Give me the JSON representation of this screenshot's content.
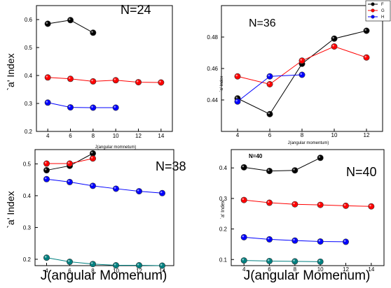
{
  "chart_data": [
    {
      "type": "line",
      "title": "N=24",
      "xlabel": "J(angular momnetum)",
      "ylabel": "`a' Index",
      "xlim": [
        3,
        15
      ],
      "ylim": [
        0.2,
        0.65
      ],
      "xticks": [
        "4",
        "6",
        "8",
        "10",
        "12",
        "14"
      ],
      "yticks": [
        "0.2",
        "0.3",
        "0.4",
        "0.5",
        "0.6"
      ],
      "series": [
        {
          "color": "#000000",
          "x": [
            4,
            6,
            8
          ],
          "y": [
            0.585,
            0.598,
            0.553
          ]
        },
        {
          "color": "#ff0000",
          "x": [
            4,
            6,
            8,
            10,
            12,
            14
          ],
          "y": [
            0.393,
            0.388,
            0.379,
            0.383,
            0.376,
            0.375
          ]
        },
        {
          "color": "#0000ff",
          "x": [
            4,
            6,
            8,
            10
          ],
          "y": [
            0.303,
            0.286,
            0.285,
            0.285
          ]
        }
      ]
    },
    {
      "type": "line",
      "title": "N=36",
      "xlabel": "J(angular momentum)",
      "ylabel": "`a' Index",
      "xlim": [
        3,
        13
      ],
      "ylim": [
        0.42,
        0.5
      ],
      "xticks": [
        "4",
        "6",
        "8",
        "10",
        "12"
      ],
      "yticks": [
        "0.44",
        "0.46",
        "0.48"
      ],
      "legend": {
        "position": "top-right",
        "entries": [
          "F",
          "G",
          "H"
        ]
      },
      "series": [
        {
          "name": "F",
          "color": "#000000",
          "x": [
            4,
            6,
            8,
            10,
            12
          ],
          "y": [
            0.441,
            0.431,
            0.463,
            0.479,
            0.484
          ]
        },
        {
          "name": "G",
          "color": "#ff0000",
          "x": [
            4,
            6,
            8,
            10,
            12
          ],
          "y": [
            0.455,
            0.45,
            0.465,
            0.474,
            0.467
          ]
        },
        {
          "name": "H",
          "color": "#0000ff",
          "x": [
            4,
            6,
            8
          ],
          "y": [
            0.439,
            0.455,
            0.456
          ]
        }
      ]
    },
    {
      "type": "line",
      "title": "N=38",
      "xlabel": "J(angular Momenum)",
      "ylabel": "`a' Index",
      "xlim": [
        3,
        15
      ],
      "ylim": [
        0.18,
        0.545
      ],
      "xticks": [
        "4",
        "6",
        "8",
        "10",
        "12",
        "14"
      ],
      "yticks": [
        "0.2",
        "0.3",
        "0.4",
        "0.5"
      ],
      "series": [
        {
          "color": "#000000",
          "x": [
            4,
            6,
            8
          ],
          "y": [
            0.48,
            0.494,
            0.533
          ]
        },
        {
          "color": "#ff0000",
          "x": [
            4,
            6,
            8
          ],
          "y": [
            0.501,
            0.501,
            0.517
          ]
        },
        {
          "color": "#0000ff",
          "x": [
            4,
            6,
            8,
            10,
            12,
            14
          ],
          "y": [
            0.452,
            0.443,
            0.431,
            0.422,
            0.414,
            0.408
          ]
        },
        {
          "color": "#008080",
          "x": [
            4,
            6,
            8,
            10,
            12,
            14
          ],
          "y": [
            0.205,
            0.192,
            0.185,
            0.181,
            0.181,
            0.18
          ]
        }
      ]
    },
    {
      "type": "line",
      "title": "N=40",
      "xlabel": "J(angular Momenum)",
      "ylabel": "`a' Index",
      "xlim": [
        3,
        15
      ],
      "ylim": [
        0.08,
        0.46
      ],
      "xticks": [
        "4",
        "6",
        "8",
        "10",
        "12",
        "14"
      ],
      "yticks": [
        "0.1",
        "0.2",
        "0.3",
        "0.4"
      ],
      "annotations": [
        "N=40"
      ],
      "series": [
        {
          "color": "#000000",
          "x": [
            4,
            6,
            8,
            10
          ],
          "y": [
            0.402,
            0.39,
            0.392,
            0.433
          ]
        },
        {
          "color": "#ff0000",
          "x": [
            4,
            6,
            8,
            10,
            12,
            14
          ],
          "y": [
            0.295,
            0.286,
            0.281,
            0.279,
            0.276,
            0.274
          ]
        },
        {
          "color": "#0000ff",
          "x": [
            4,
            6,
            8,
            10,
            12
          ],
          "y": [
            0.173,
            0.166,
            0.162,
            0.159,
            0.158
          ]
        },
        {
          "color": "#008080",
          "x": [
            4,
            6,
            8,
            10
          ],
          "y": [
            0.097,
            0.095,
            0.094,
            0.093
          ]
        }
      ]
    }
  ]
}
